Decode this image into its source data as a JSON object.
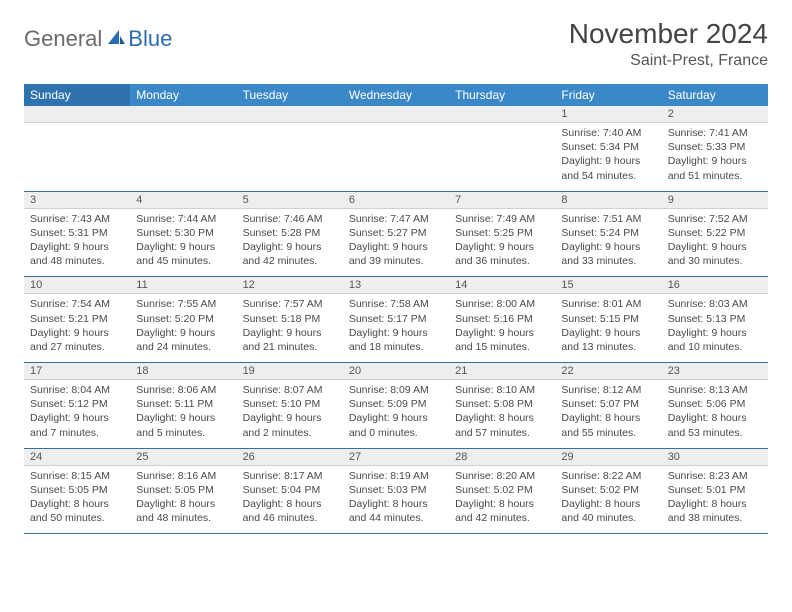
{
  "brand": {
    "part1": "General",
    "part2": "Blue"
  },
  "title": "November 2024",
  "location": "Saint-Prest, France",
  "colors": {
    "header_bg": "#3b88c8",
    "header_sunday_bg": "#2f73ae",
    "header_text": "#ffffff",
    "daynum_bg": "#eeeeee",
    "row_border": "#3b6fa0",
    "text": "#4a4a4a",
    "logo_gray": "#6b6b6b",
    "logo_blue": "#2a6db0",
    "background": "#ffffff"
  },
  "typography": {
    "month_title_fontsize": 28,
    "location_fontsize": 16,
    "header_fontsize": 12,
    "daynum_fontsize": 11,
    "detail_fontsize": 10.5
  },
  "columns": [
    "Sunday",
    "Monday",
    "Tuesday",
    "Wednesday",
    "Thursday",
    "Friday",
    "Saturday"
  ],
  "weeks": [
    {
      "daynums": [
        "",
        "",
        "",
        "",
        "",
        "1",
        "2"
      ],
      "details": [
        "",
        "",
        "",
        "",
        "",
        "Sunrise: 7:40 AM\nSunset: 5:34 PM\nDaylight: 9 hours and 54 minutes.",
        "Sunrise: 7:41 AM\nSunset: 5:33 PM\nDaylight: 9 hours and 51 minutes."
      ]
    },
    {
      "daynums": [
        "3",
        "4",
        "5",
        "6",
        "7",
        "8",
        "9"
      ],
      "details": [
        "Sunrise: 7:43 AM\nSunset: 5:31 PM\nDaylight: 9 hours and 48 minutes.",
        "Sunrise: 7:44 AM\nSunset: 5:30 PM\nDaylight: 9 hours and 45 minutes.",
        "Sunrise: 7:46 AM\nSunset: 5:28 PM\nDaylight: 9 hours and 42 minutes.",
        "Sunrise: 7:47 AM\nSunset: 5:27 PM\nDaylight: 9 hours and 39 minutes.",
        "Sunrise: 7:49 AM\nSunset: 5:25 PM\nDaylight: 9 hours and 36 minutes.",
        "Sunrise: 7:51 AM\nSunset: 5:24 PM\nDaylight: 9 hours and 33 minutes.",
        "Sunrise: 7:52 AM\nSunset: 5:22 PM\nDaylight: 9 hours and 30 minutes."
      ]
    },
    {
      "daynums": [
        "10",
        "11",
        "12",
        "13",
        "14",
        "15",
        "16"
      ],
      "details": [
        "Sunrise: 7:54 AM\nSunset: 5:21 PM\nDaylight: 9 hours and 27 minutes.",
        "Sunrise: 7:55 AM\nSunset: 5:20 PM\nDaylight: 9 hours and 24 minutes.",
        "Sunrise: 7:57 AM\nSunset: 5:18 PM\nDaylight: 9 hours and 21 minutes.",
        "Sunrise: 7:58 AM\nSunset: 5:17 PM\nDaylight: 9 hours and 18 minutes.",
        "Sunrise: 8:00 AM\nSunset: 5:16 PM\nDaylight: 9 hours and 15 minutes.",
        "Sunrise: 8:01 AM\nSunset: 5:15 PM\nDaylight: 9 hours and 13 minutes.",
        "Sunrise: 8:03 AM\nSunset: 5:13 PM\nDaylight: 9 hours and 10 minutes."
      ]
    },
    {
      "daynums": [
        "17",
        "18",
        "19",
        "20",
        "21",
        "22",
        "23"
      ],
      "details": [
        "Sunrise: 8:04 AM\nSunset: 5:12 PM\nDaylight: 9 hours and 7 minutes.",
        "Sunrise: 8:06 AM\nSunset: 5:11 PM\nDaylight: 9 hours and 5 minutes.",
        "Sunrise: 8:07 AM\nSunset: 5:10 PM\nDaylight: 9 hours and 2 minutes.",
        "Sunrise: 8:09 AM\nSunset: 5:09 PM\nDaylight: 9 hours and 0 minutes.",
        "Sunrise: 8:10 AM\nSunset: 5:08 PM\nDaylight: 8 hours and 57 minutes.",
        "Sunrise: 8:12 AM\nSunset: 5:07 PM\nDaylight: 8 hours and 55 minutes.",
        "Sunrise: 8:13 AM\nSunset: 5:06 PM\nDaylight: 8 hours and 53 minutes."
      ]
    },
    {
      "daynums": [
        "24",
        "25",
        "26",
        "27",
        "28",
        "29",
        "30"
      ],
      "details": [
        "Sunrise: 8:15 AM\nSunset: 5:05 PM\nDaylight: 8 hours and 50 minutes.",
        "Sunrise: 8:16 AM\nSunset: 5:05 PM\nDaylight: 8 hours and 48 minutes.",
        "Sunrise: 8:17 AM\nSunset: 5:04 PM\nDaylight: 8 hours and 46 minutes.",
        "Sunrise: 8:19 AM\nSunset: 5:03 PM\nDaylight: 8 hours and 44 minutes.",
        "Sunrise: 8:20 AM\nSunset: 5:02 PM\nDaylight: 8 hours and 42 minutes.",
        "Sunrise: 8:22 AM\nSunset: 5:02 PM\nDaylight: 8 hours and 40 minutes.",
        "Sunrise: 8:23 AM\nSunset: 5:01 PM\nDaylight: 8 hours and 38 minutes."
      ]
    }
  ]
}
